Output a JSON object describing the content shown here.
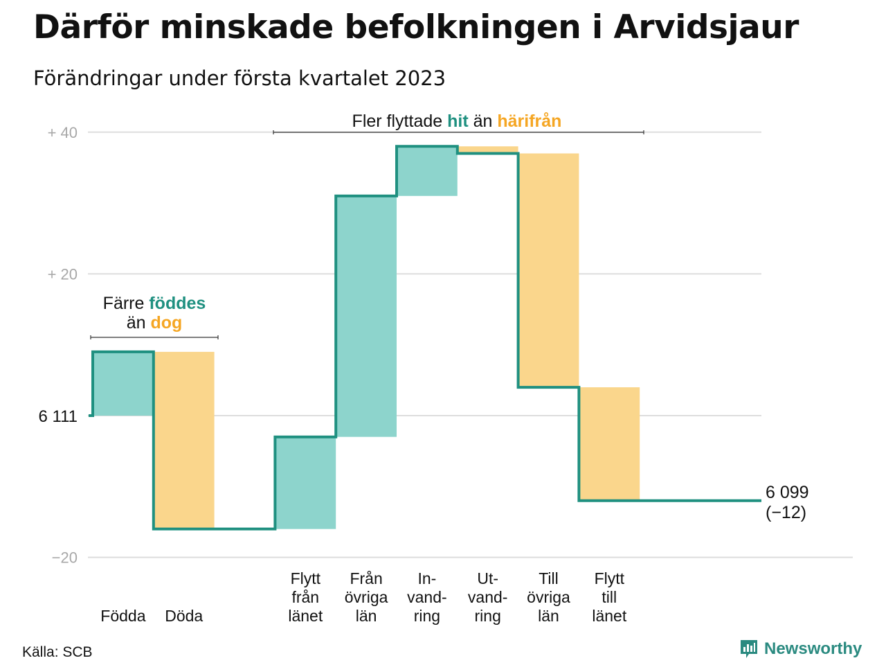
{
  "title": "Därför minskade befolkningen i Arvidsjaur",
  "subtitle": "Förändringar under första kvartalet 2023",
  "source": "Källa: SCB",
  "brand": "Newsworthy",
  "colors": {
    "increase": "#8dd4cc",
    "decrease": "#fad68c",
    "line": "#1f9080",
    "teal_text": "#1f9080",
    "orange_text": "#f5a623",
    "grid": "#dddddd",
    "tick_text": "#a8a8a8"
  },
  "annotations": {
    "births": {
      "line1_pre": "Färre ",
      "line1_hi": "föddes",
      "line2_pre": "än ",
      "line2_hi": "dog"
    },
    "moves": {
      "pre": "Fler flyttade ",
      "hi1": "hit",
      "mid": " än ",
      "hi2": "härifrån"
    }
  },
  "chart_data": {
    "type": "waterfall",
    "base_value": 6111,
    "start_label": "6 111",
    "end_label": "6 099",
    "end_change_label": "(−12)",
    "ylim": [
      -20,
      40
    ],
    "yticks": [
      {
        "value": 40,
        "label": "+ 40"
      },
      {
        "value": 20,
        "label": "+ 20"
      },
      {
        "value": -20,
        "label": "−20"
      }
    ],
    "categories": [
      {
        "lines": [
          "Födda"
        ],
        "value": 9
      },
      {
        "lines": [
          "Döda"
        ],
        "value": -25
      },
      {
        "lines": [],
        "value": 0
      },
      {
        "lines": [
          "Flytt",
          "från",
          "länet"
        ],
        "value": 13
      },
      {
        "lines": [
          "Från",
          "övriga",
          "län"
        ],
        "value": 34
      },
      {
        "lines": [
          "In-",
          "vand-",
          "ring"
        ],
        "value": 7
      },
      {
        "lines": [
          "Ut-",
          "vand-",
          "ring"
        ],
        "value": -1
      },
      {
        "lines": [
          "Till",
          "övriga",
          "län"
        ],
        "value": -33
      },
      {
        "lines": [
          "Flytt",
          "till",
          "länet"
        ],
        "value": -16
      }
    ]
  }
}
